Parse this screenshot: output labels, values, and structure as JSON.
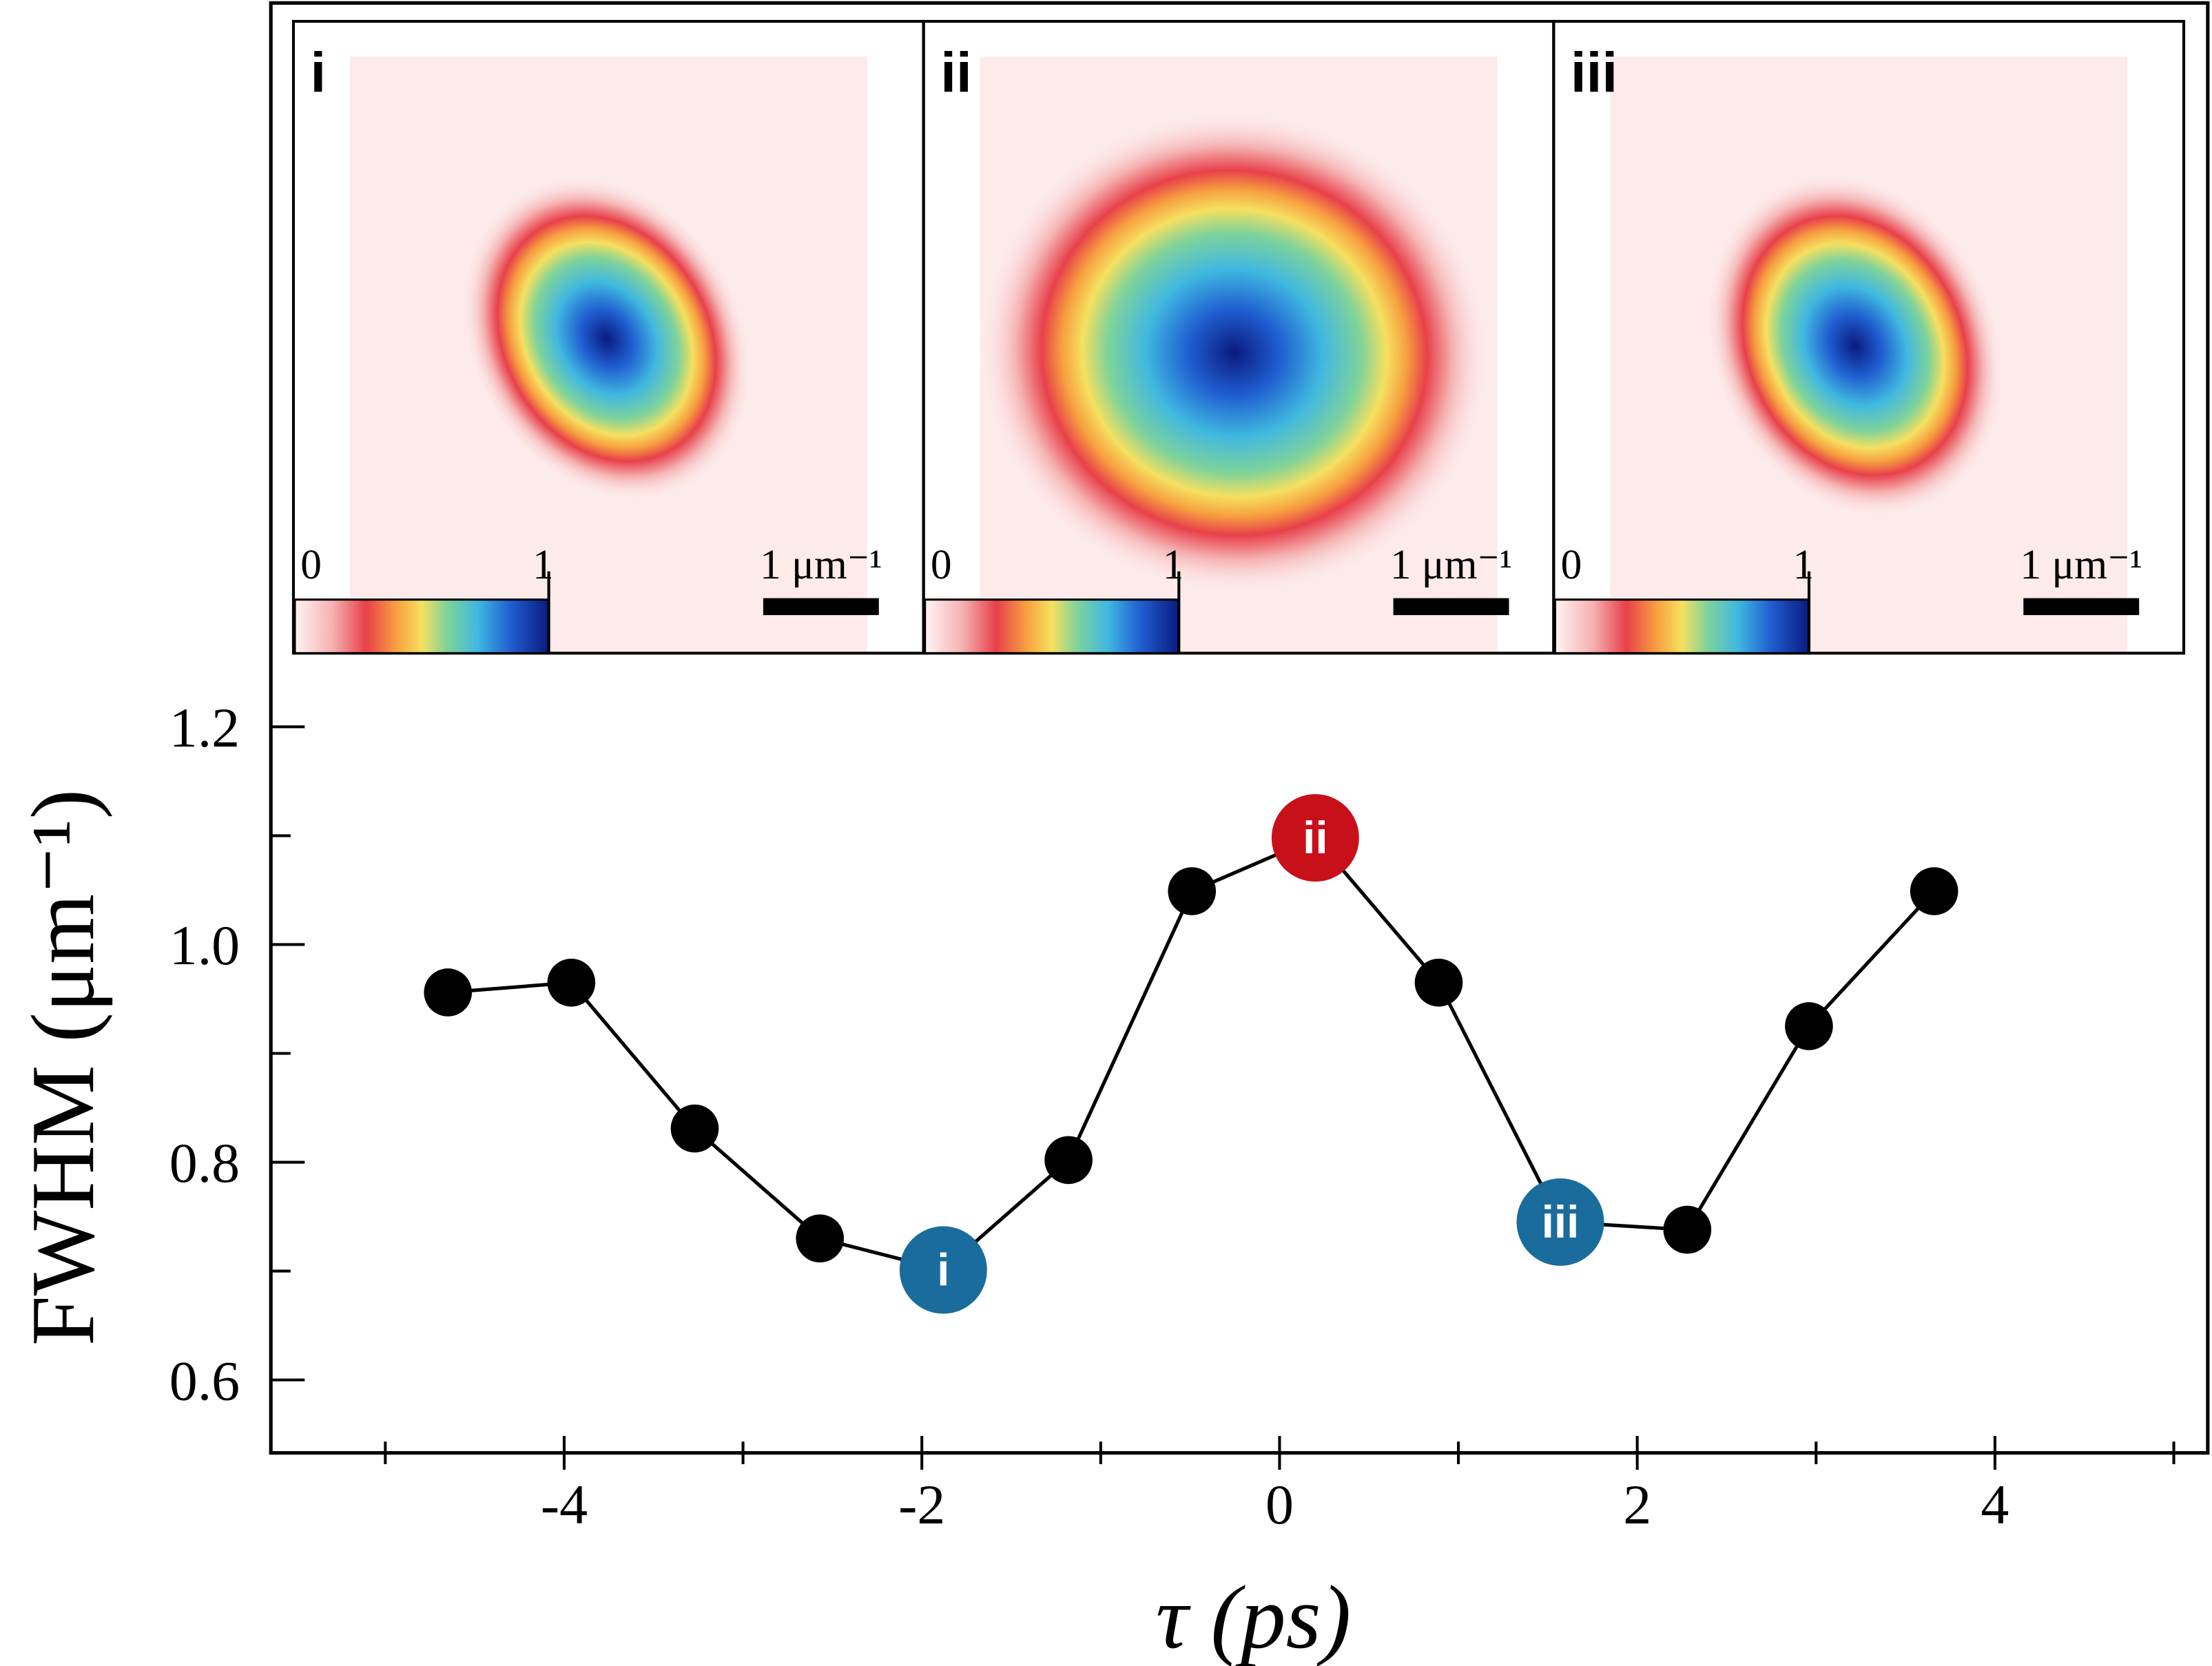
{
  "chart_data": {
    "type": "line",
    "x": [
      -4.65,
      -3.96,
      -3.27,
      -2.57,
      -1.88,
      -1.18,
      -0.49,
      0.2,
      0.89,
      1.57,
      2.28,
      2.96,
      3.66
    ],
    "series": [
      {
        "color": "#000000",
        "values": [
          0.956,
          0.965,
          0.831,
          0.73,
          0.701,
          0.802,
          1.049,
          1.098,
          0.965,
          0.745,
          0.738,
          0.925,
          1.049
        ]
      }
    ],
    "marker_colors": [
      "#000000",
      "#000000",
      "#000000",
      "#000000",
      "#1a6c9c",
      "#000000",
      "#000000",
      "#c8101a",
      "#000000",
      "#1a6c9c",
      "#000000",
      "#000000",
      "#000000"
    ],
    "point_labels": [
      null,
      null,
      null,
      null,
      "i",
      null,
      null,
      "ii",
      null,
      "iii",
      null,
      null,
      null
    ],
    "xlabel": "τ (ps)",
    "ylabel": "FWHM (μm⁻¹)",
    "xlim": [
      -5.64,
      5.19
    ],
    "ylim": [
      0.533,
      1.865
    ],
    "xticks": [
      -4,
      -2,
      0,
      2,
      4
    ],
    "xticks_minor": [
      -5,
      -3,
      -1,
      1,
      3,
      5
    ],
    "yticks": [
      0.6,
      0.8,
      1.0,
      1.2
    ],
    "yticks_minor": [
      0.7,
      0.9,
      1.1
    ],
    "insets": [
      {
        "label": "i",
        "colorbar_ticks": [
          0,
          1
        ],
        "scale_bar": "1 μm⁻¹"
      },
      {
        "label": "ii",
        "colorbar_ticks": [
          0,
          1
        ],
        "scale_bar": "1 μm⁻¹"
      },
      {
        "label": "iii",
        "colorbar_ticks": [
          0,
          1
        ],
        "scale_bar": "1 μm⁻¹"
      }
    ]
  }
}
